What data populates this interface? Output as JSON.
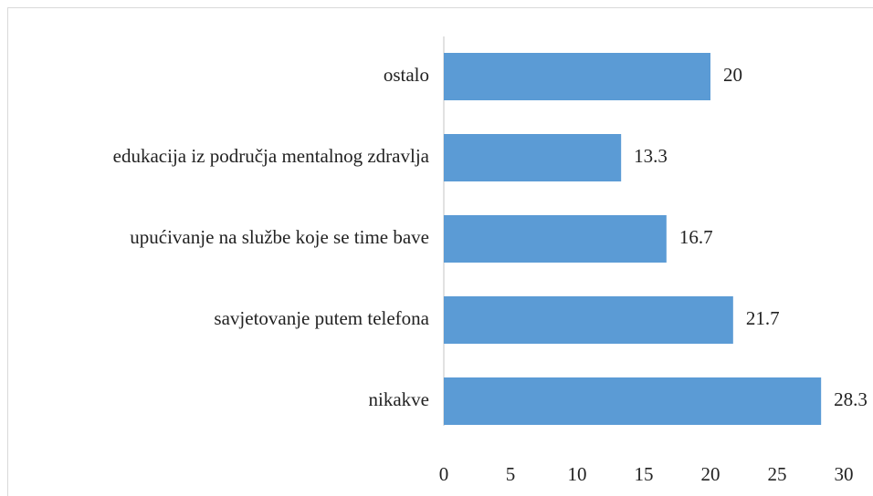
{
  "chart_data": {
    "type": "bar",
    "orientation": "horizontal",
    "categories": [
      "ostalo",
      "edukacija iz područja mentalnog zdravlja",
      "upućivanje na službe koje se time bave",
      "savjetovanje putem telefona",
      "nikakve"
    ],
    "values": [
      20,
      13.3,
      16.7,
      21.7,
      28.3
    ],
    "color": "#5b9bd5",
    "xlim": [
      0,
      30
    ],
    "xticks": [
      0,
      5,
      10,
      15,
      20,
      25,
      30
    ],
    "grid": false
  }
}
